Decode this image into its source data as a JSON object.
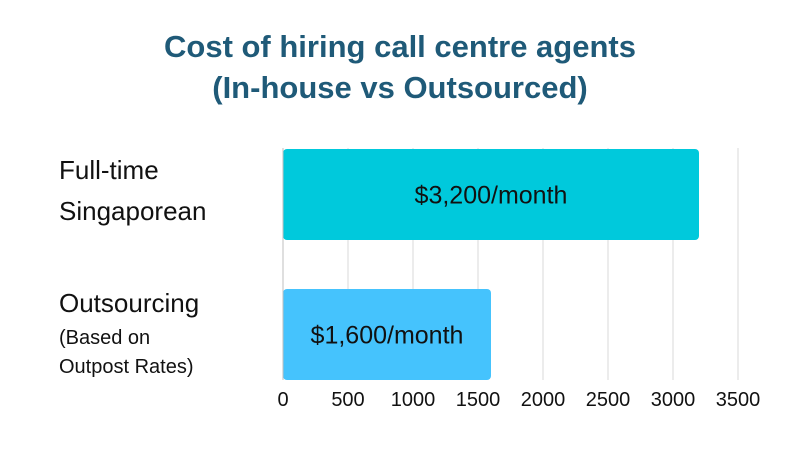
{
  "chart_data": {
    "type": "bar",
    "orientation": "horizontal",
    "title_lines": [
      "Cost of hiring call centre agents",
      "(In-house vs Outsourced)"
    ],
    "categories": [
      {
        "lines": [
          "Full-time",
          "Singaporean"
        ],
        "sub_lines": []
      },
      {
        "lines": [
          "Outsourcing"
        ],
        "sub_lines": [
          "(Based on",
          "Outpost Rates)"
        ]
      }
    ],
    "values": [
      3200,
      1600
    ],
    "data_labels": [
      "$3,200/month",
      "$1,600/month"
    ],
    "bar_colors": [
      "#00c9dc",
      "#45c3fd"
    ],
    "xlim": [
      0,
      3500
    ],
    "xticks": [
      0,
      500,
      1000,
      1500,
      2000,
      2500,
      3000,
      3500
    ],
    "xtick_labels": [
      "0",
      "500",
      "1000",
      "1500",
      "2000",
      "2500",
      "3000",
      "3500"
    ],
    "grid": true,
    "legend": "none"
  }
}
